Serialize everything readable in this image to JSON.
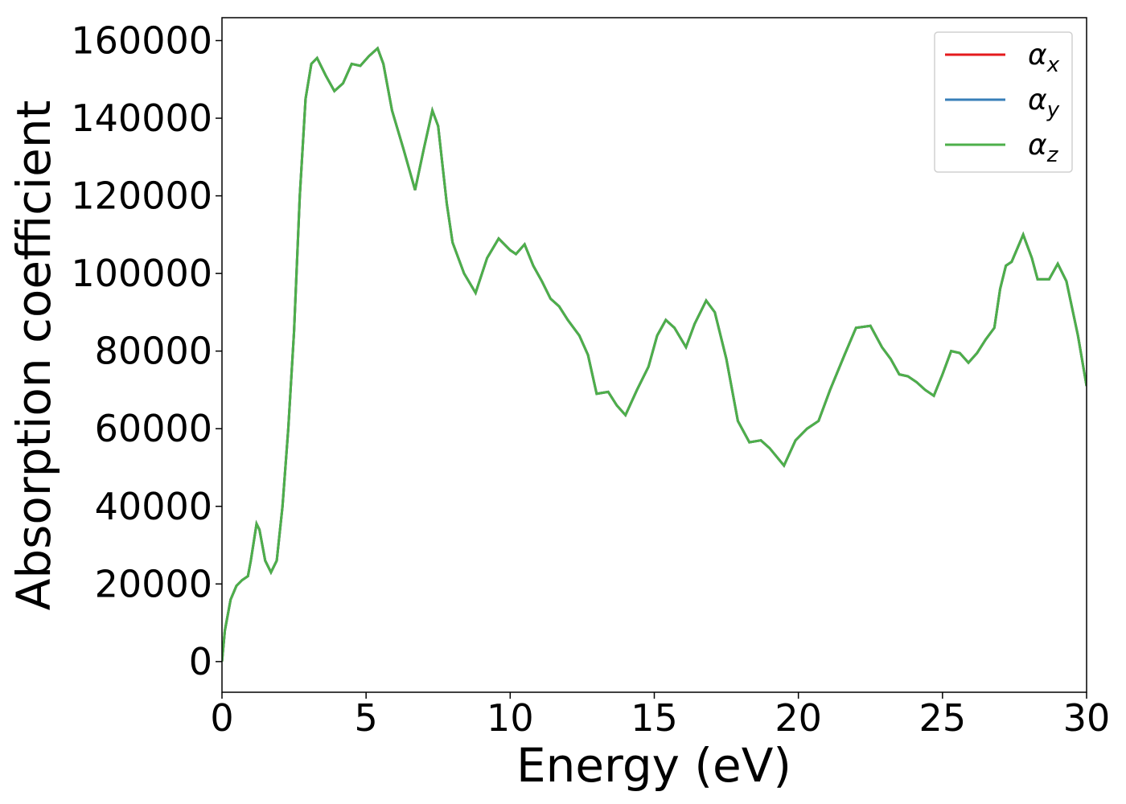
{
  "chart_data": {
    "type": "line",
    "xlabel": "Energy (eV)",
    "ylabel": "Absorption coefficient",
    "x": [
      0,
      0.1,
      0.3,
      0.5,
      0.7,
      0.9,
      1.0,
      1.2,
      1.3,
      1.5,
      1.7,
      1.9,
      2.1,
      2.3,
      2.5,
      2.7,
      2.9,
      3.1,
      3.3,
      3.6,
      3.9,
      4.2,
      4.5,
      4.8,
      5.1,
      5.4,
      5.6,
      5.9,
      6.3,
      6.7,
      7.0,
      7.3,
      7.5,
      7.8,
      8.0,
      8.4,
      8.8,
      9.2,
      9.6,
      10.0,
      10.2,
      10.5,
      10.8,
      11.1,
      11.4,
      11.7,
      12.0,
      12.4,
      12.7,
      13.0,
      13.4,
      13.7,
      14.0,
      14.4,
      14.8,
      15.1,
      15.4,
      15.7,
      16.1,
      16.4,
      16.8,
      17.1,
      17.5,
      17.9,
      18.3,
      18.7,
      19.0,
      19.5,
      19.9,
      20.3,
      20.7,
      21.1,
      21.6,
      22.0,
      22.5,
      22.9,
      23.2,
      23.5,
      23.8,
      24.1,
      24.4,
      24.7,
      25.0,
      25.3,
      25.6,
      25.9,
      26.2,
      26.5,
      26.8,
      27.0,
      27.2,
      27.4,
      27.8,
      28.1,
      28.3,
      28.7,
      29.0,
      29.3,
      29.7,
      30.0
    ],
    "series": [
      {
        "name": "αx",
        "color": "#e41a1c",
        "values": [
          0,
          8000,
          16000,
          19500,
          21000,
          22000,
          26000,
          35500,
          34000,
          26000,
          23000,
          26000,
          40000,
          60000,
          85000,
          120000,
          145000,
          154000,
          155500,
          151000,
          147000,
          149000,
          154000,
          153500,
          156000,
          158000,
          154000,
          142000,
          132000,
          121500,
          132000,
          142000,
          138000,
          118000,
          108000,
          100000,
          95000,
          104000,
          109000,
          106000,
          105000,
          107500,
          102000,
          98000,
          93500,
          91500,
          88000,
          84000,
          79000,
          69000,
          69500,
          66000,
          63500,
          70000,
          76000,
          84000,
          88000,
          86000,
          81000,
          87000,
          93000,
          90000,
          78000,
          62000,
          56500,
          57000,
          55000,
          50500,
          57000,
          60000,
          62000,
          70000,
          79000,
          86000,
          86500,
          81000,
          78000,
          74000,
          73500,
          72000,
          70000,
          68500,
          74000,
          80000,
          79500,
          77000,
          79500,
          83000,
          86000,
          96000,
          102000,
          103000,
          110000,
          104000,
          98500,
          98500,
          102500,
          98000,
          84000,
          71000
        ]
      },
      {
        "name": "αy",
        "color": "#377eb8",
        "values": [
          0,
          8000,
          16000,
          19500,
          21000,
          22000,
          26000,
          35500,
          34000,
          26000,
          23000,
          26000,
          40000,
          60000,
          85000,
          120000,
          145000,
          154000,
          155500,
          151000,
          147000,
          149000,
          154000,
          153500,
          156000,
          158000,
          154000,
          142000,
          132000,
          121500,
          132000,
          142000,
          138000,
          118000,
          108000,
          100000,
          95000,
          104000,
          109000,
          106000,
          105000,
          107500,
          102000,
          98000,
          93500,
          91500,
          88000,
          84000,
          79000,
          69000,
          69500,
          66000,
          63500,
          70000,
          76000,
          84000,
          88000,
          86000,
          81000,
          87000,
          93000,
          90000,
          78000,
          62000,
          56500,
          57000,
          55000,
          50500,
          57000,
          60000,
          62000,
          70000,
          79000,
          86000,
          86500,
          81000,
          78000,
          74000,
          73500,
          72000,
          70000,
          68500,
          74000,
          80000,
          79500,
          77000,
          79500,
          83000,
          86000,
          96000,
          102000,
          103000,
          110000,
          104000,
          98500,
          98500,
          102500,
          98000,
          84000,
          71000
        ]
      },
      {
        "name": "αz",
        "color": "#4daf4a",
        "values": [
          0,
          8000,
          16000,
          19500,
          21000,
          22000,
          26000,
          35500,
          34000,
          26000,
          23000,
          26000,
          40000,
          60000,
          85000,
          120000,
          145000,
          154000,
          155500,
          151000,
          147000,
          149000,
          154000,
          153500,
          156000,
          158000,
          154000,
          142000,
          132000,
          121500,
          132000,
          142000,
          138000,
          118000,
          108000,
          100000,
          95000,
          104000,
          109000,
          106000,
          105000,
          107500,
          102000,
          98000,
          93500,
          91500,
          88000,
          84000,
          79000,
          69000,
          69500,
          66000,
          63500,
          70000,
          76000,
          84000,
          88000,
          86000,
          81000,
          87000,
          93000,
          90000,
          78000,
          62000,
          56500,
          57000,
          55000,
          50500,
          57000,
          60000,
          62000,
          70000,
          79000,
          86000,
          86500,
          81000,
          78000,
          74000,
          73500,
          72000,
          70000,
          68500,
          74000,
          80000,
          79500,
          77000,
          79500,
          83000,
          86000,
          96000,
          102000,
          103000,
          110000,
          104000,
          98500,
          98500,
          102500,
          98000,
          84000,
          71000
        ]
      }
    ],
    "xlim": [
      0,
      30
    ],
    "xticks": [
      0,
      5,
      10,
      15,
      20,
      25,
      30
    ],
    "ylim": [
      -7900,
      165900
    ],
    "yticks": [
      0,
      20000,
      40000,
      60000,
      80000,
      100000,
      120000,
      140000,
      160000
    ],
    "legend": "upper right"
  }
}
